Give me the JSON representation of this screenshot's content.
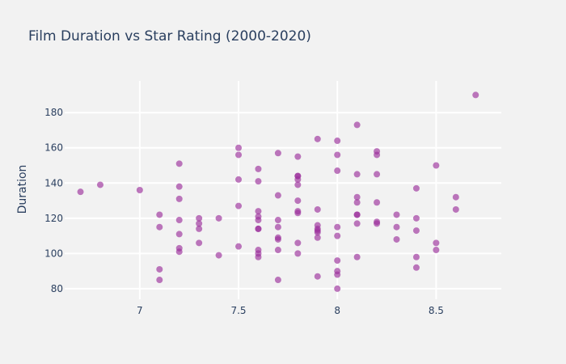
{
  "chart_data": {
    "type": "scatter",
    "title": "Film Duration vs Star Rating  (2000-2020)",
    "xlabel": "",
    "ylabel": "Duration",
    "xlim": [
      6.62,
      8.83
    ],
    "ylim": [
      74,
      198
    ],
    "xticks": [
      7,
      7.5,
      8,
      8.5
    ],
    "xtick_labels": [
      "7",
      "7.5",
      "8",
      "8.5"
    ],
    "yticks": [
      80,
      100,
      120,
      140,
      160,
      180
    ],
    "ytick_labels": [
      "80",
      "100",
      "120",
      "140",
      "160",
      "180"
    ],
    "grid": true,
    "legend": "none",
    "colors": {
      "marker": "#9b2f9b",
      "background": "#f2f2f2",
      "plot_bg": "#f2f2f2",
      "grid": "#ffffff",
      "text": "#2a3f5f"
    },
    "marker_opacity": 0.65,
    "points": [
      [
        6.7,
        135
      ],
      [
        6.8,
        139
      ],
      [
        7.0,
        136
      ],
      [
        7.1,
        122
      ],
      [
        7.1,
        115
      ],
      [
        7.1,
        91
      ],
      [
        7.1,
        85
      ],
      [
        7.2,
        151
      ],
      [
        7.2,
        138
      ],
      [
        7.2,
        131
      ],
      [
        7.2,
        119
      ],
      [
        7.2,
        111
      ],
      [
        7.2,
        103
      ],
      [
        7.2,
        101
      ],
      [
        7.3,
        120
      ],
      [
        7.3,
        117
      ],
      [
        7.3,
        114
      ],
      [
        7.3,
        106
      ],
      [
        7.4,
        120
      ],
      [
        7.4,
        99
      ],
      [
        7.5,
        160
      ],
      [
        7.5,
        156
      ],
      [
        7.5,
        142
      ],
      [
        7.5,
        127
      ],
      [
        7.5,
        104
      ],
      [
        7.6,
        148
      ],
      [
        7.6,
        141
      ],
      [
        7.6,
        124
      ],
      [
        7.6,
        121
      ],
      [
        7.6,
        119
      ],
      [
        7.6,
        114
      ],
      [
        7.6,
        114
      ],
      [
        7.6,
        102
      ],
      [
        7.6,
        100
      ],
      [
        7.6,
        98
      ],
      [
        7.7,
        157
      ],
      [
        7.7,
        133
      ],
      [
        7.7,
        119
      ],
      [
        7.7,
        115
      ],
      [
        7.7,
        109
      ],
      [
        7.7,
        108
      ],
      [
        7.7,
        102
      ],
      [
        7.7,
        85
      ],
      [
        7.8,
        155
      ],
      [
        7.8,
        144
      ],
      [
        7.8,
        144
      ],
      [
        7.8,
        142
      ],
      [
        7.8,
        139
      ],
      [
        7.8,
        130
      ],
      [
        7.8,
        124
      ],
      [
        7.8,
        123
      ],
      [
        7.8,
        106
      ],
      [
        7.8,
        100
      ],
      [
        7.9,
        165
      ],
      [
        7.9,
        125
      ],
      [
        7.9,
        116
      ],
      [
        7.9,
        114
      ],
      [
        7.9,
        113
      ],
      [
        7.9,
        112
      ],
      [
        7.9,
        109
      ],
      [
        7.9,
        87
      ],
      [
        8.0,
        164
      ],
      [
        8.0,
        156
      ],
      [
        8.0,
        147
      ],
      [
        8.0,
        115
      ],
      [
        8.0,
        110
      ],
      [
        8.0,
        96
      ],
      [
        8.0,
        90
      ],
      [
        8.0,
        88
      ],
      [
        8.0,
        80
      ],
      [
        8.1,
        173
      ],
      [
        8.1,
        145
      ],
      [
        8.1,
        132
      ],
      [
        8.1,
        129
      ],
      [
        8.1,
        122
      ],
      [
        8.1,
        122
      ],
      [
        8.1,
        117
      ],
      [
        8.1,
        98
      ],
      [
        8.2,
        158
      ],
      [
        8.2,
        156
      ],
      [
        8.2,
        145
      ],
      [
        8.2,
        129
      ],
      [
        8.2,
        118
      ],
      [
        8.2,
        117
      ],
      [
        8.3,
        122
      ],
      [
        8.3,
        115
      ],
      [
        8.3,
        108
      ],
      [
        8.4,
        137
      ],
      [
        8.4,
        120
      ],
      [
        8.4,
        113
      ],
      [
        8.4,
        98
      ],
      [
        8.4,
        92
      ],
      [
        8.5,
        150
      ],
      [
        8.5,
        106
      ],
      [
        8.5,
        102
      ],
      [
        8.6,
        132
      ],
      [
        8.6,
        125
      ],
      [
        8.7,
        190
      ]
    ]
  }
}
